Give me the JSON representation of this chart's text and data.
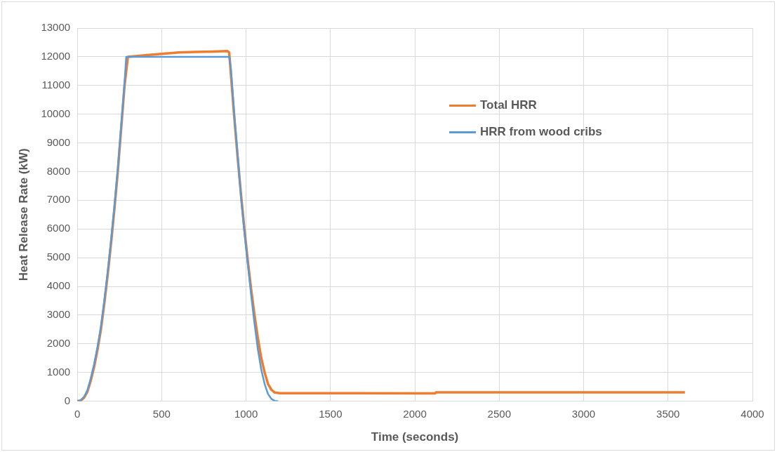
{
  "chart_data": {
    "type": "line",
    "xlabel": "Time (seconds)",
    "ylabel": "Heat Release Rate (kW)",
    "xlim": [
      0,
      4000
    ],
    "xticks": [
      0,
      500,
      1000,
      1500,
      2000,
      2500,
      3000,
      3500,
      4000
    ],
    "ylim": [
      0,
      13000
    ],
    "yticks": [
      0,
      1000,
      2000,
      3000,
      4000,
      5000,
      6000,
      7000,
      8000,
      9000,
      10000,
      11000,
      12000,
      13000
    ],
    "grid": true,
    "legend": "top right",
    "marker": "none",
    "line_style": "solid",
    "series": [
      {
        "name": "Total HRR",
        "color": "#ed7d31",
        "x": [
          0,
          20,
          40,
          60,
          80,
          100,
          120,
          140,
          160,
          180,
          200,
          220,
          240,
          260,
          280,
          300,
          400,
          500,
          600,
          700,
          800,
          890,
          900,
          910,
          930,
          950,
          970,
          990,
          1010,
          1030,
          1050,
          1070,
          1090,
          1110,
          1130,
          1150,
          1170,
          1200,
          2120,
          2125,
          3600
        ],
        "values": [
          0,
          20,
          120,
          330,
          720,
          1200,
          1800,
          2500,
          3400,
          4400,
          5500,
          6700,
          8000,
          9500,
          11000,
          12000,
          12050,
          12100,
          12150,
          12170,
          12180,
          12200,
          12150,
          11400,
          9900,
          8500,
          7200,
          6000,
          4900,
          3900,
          3000,
          2200,
          1500,
          1000,
          600,
          400,
          300,
          280,
          270,
          310,
          310
        ]
      },
      {
        "name": "HRR from wood cribs",
        "color": "#5b9bd5",
        "x": [
          0,
          20,
          40,
          60,
          80,
          100,
          120,
          140,
          160,
          180,
          200,
          220,
          240,
          260,
          280,
          290,
          900,
          910,
          930,
          950,
          970,
          990,
          1010,
          1030,
          1050,
          1070,
          1090,
          1110,
          1130,
          1150,
          1170,
          1190
        ],
        "values": [
          0,
          30,
          150,
          380,
          800,
          1300,
          1900,
          2600,
          3500,
          4500,
          5600,
          6800,
          8100,
          9600,
          11100,
          12000,
          12000,
          11600,
          10000,
          8600,
          7100,
          5900,
          4800,
          3700,
          2700,
          1800,
          1100,
          600,
          250,
          80,
          10,
          0
        ]
      }
    ]
  }
}
